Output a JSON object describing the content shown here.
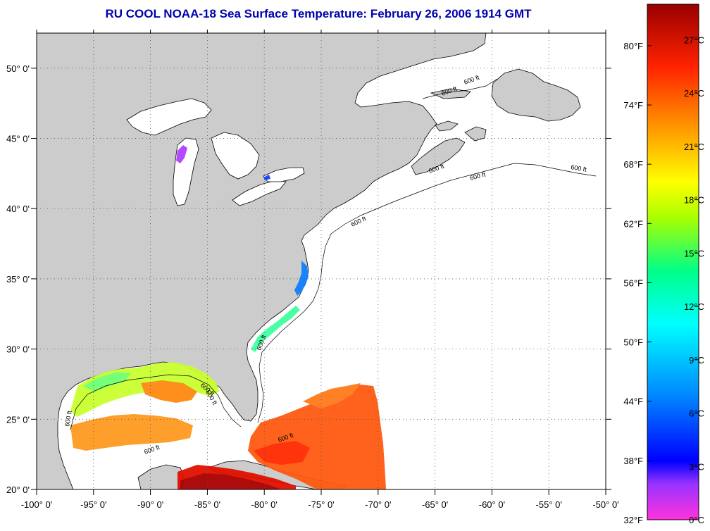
{
  "title": "RU COOL  NOAA-18  Sea Surface Temperature:  February 26, 2006 1914 GMT",
  "colors": {
    "land": "#cccccc",
    "ocean_nodata": "#ffffff",
    "coastline": "#000000",
    "title": "#0000b0"
  },
  "map": {
    "lon_range": [
      -100,
      -50
    ],
    "lat_range": [
      20,
      52.5
    ],
    "lon_ticks": [
      {
        "value": -100,
        "label": "-100° 0'"
      },
      {
        "value": -95,
        "label": "-95° 0'"
      },
      {
        "value": -90,
        "label": "-90° 0'"
      },
      {
        "value": -85,
        "label": "-85° 0'"
      },
      {
        "value": -80,
        "label": "-80° 0'"
      },
      {
        "value": -75,
        "label": "-75° 0'"
      },
      {
        "value": -70,
        "label": "-70° 0'"
      },
      {
        "value": -65,
        "label": "-65° 0'"
      },
      {
        "value": -60,
        "label": "-60° 0'"
      },
      {
        "value": -55,
        "label": "-55° 0'"
      },
      {
        "value": -50,
        "label": "-50° 0'"
      }
    ],
    "lat_ticks": [
      {
        "value": 20,
        "label": "20° 0'"
      },
      {
        "value": 25,
        "label": "25° 0'"
      },
      {
        "value": 30,
        "label": "30° 0'"
      },
      {
        "value": 35,
        "label": "35° 0'"
      },
      {
        "value": 40,
        "label": "40° 0'"
      },
      {
        "value": 45,
        "label": "45° 0'"
      },
      {
        "value": 50,
        "label": "50° 0'"
      }
    ],
    "grid": "dotted",
    "isobath_label": "600 ft"
  },
  "colorbar": {
    "min_c": 0,
    "max_c": 29,
    "celsius_ticks": [
      {
        "value": 0,
        "label": "0°C"
      },
      {
        "value": 3,
        "label": "3°C"
      },
      {
        "value": 6,
        "label": "6°C"
      },
      {
        "value": 9,
        "label": "9°C"
      },
      {
        "value": 12,
        "label": "12°C"
      },
      {
        "value": 15,
        "label": "15°C"
      },
      {
        "value": 18,
        "label": "18°C"
      },
      {
        "value": 21,
        "label": "21°C"
      },
      {
        "value": 24,
        "label": "24°C"
      },
      {
        "value": 27,
        "label": "27°C"
      }
    ],
    "fahrenheit_ticks": [
      {
        "value": 32,
        "label": "32°F"
      },
      {
        "value": 38,
        "label": "38°F"
      },
      {
        "value": 44,
        "label": "44°F"
      },
      {
        "value": 50,
        "label": "50°F"
      },
      {
        "value": 56,
        "label": "56°F"
      },
      {
        "value": 62,
        "label": "62°F"
      },
      {
        "value": 68,
        "label": "68°F"
      },
      {
        "value": 74,
        "label": "74°F"
      },
      {
        "value": 80,
        "label": "80°F"
      }
    ],
    "stops": [
      {
        "t": 0,
        "color": "#ff33dd"
      },
      {
        "t": 2,
        "color": "#9933ff"
      },
      {
        "t": 3.3,
        "color": "#0000ff"
      },
      {
        "t": 7,
        "color": "#0088ff"
      },
      {
        "t": 11,
        "color": "#00ffff"
      },
      {
        "t": 14,
        "color": "#00ff88"
      },
      {
        "t": 17,
        "color": "#aaff00"
      },
      {
        "t": 19,
        "color": "#ffff00"
      },
      {
        "t": 22,
        "color": "#ff9900"
      },
      {
        "t": 25.5,
        "color": "#ff2200"
      },
      {
        "t": 29,
        "color": "#990000"
      }
    ]
  }
}
